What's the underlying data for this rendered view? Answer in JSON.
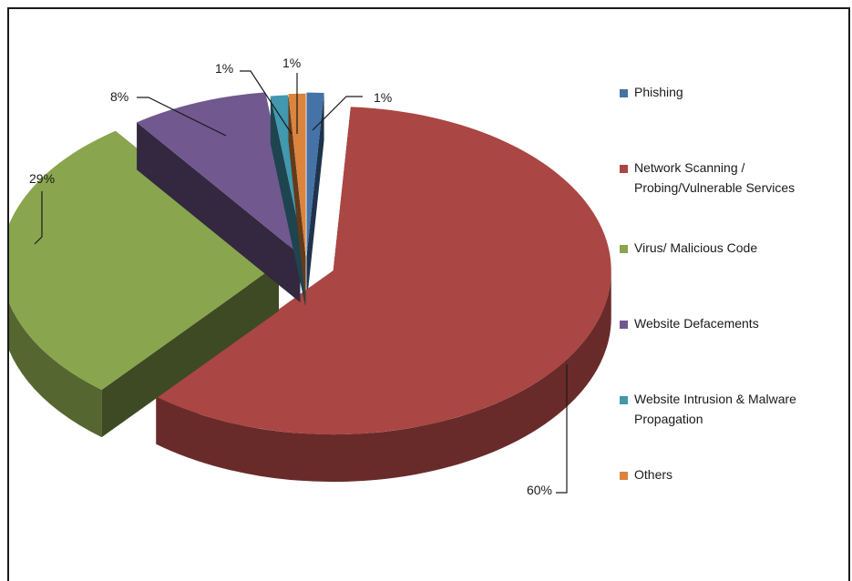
{
  "chart_data": {
    "type": "pie",
    "title": "",
    "categories": [
      "Phishing",
      "Network Scanning /\nProbing/Vulnerable Services",
      "Virus/ Malicious Code",
      "Website Defacements",
      "Website Intrusion & Malware\nPropagation",
      "Others"
    ],
    "values": [
      1,
      60,
      29,
      8,
      1,
      1
    ],
    "value_labels": [
      "1%",
      "60%",
      "29%",
      "8%",
      "1%",
      "1%"
    ],
    "colors": [
      "#4572A7",
      "#AA4643",
      "#89A54E",
      "#71588F",
      "#4198AF",
      "#DB843D"
    ],
    "legend_position": "right",
    "style": "3d exploded pie"
  }
}
